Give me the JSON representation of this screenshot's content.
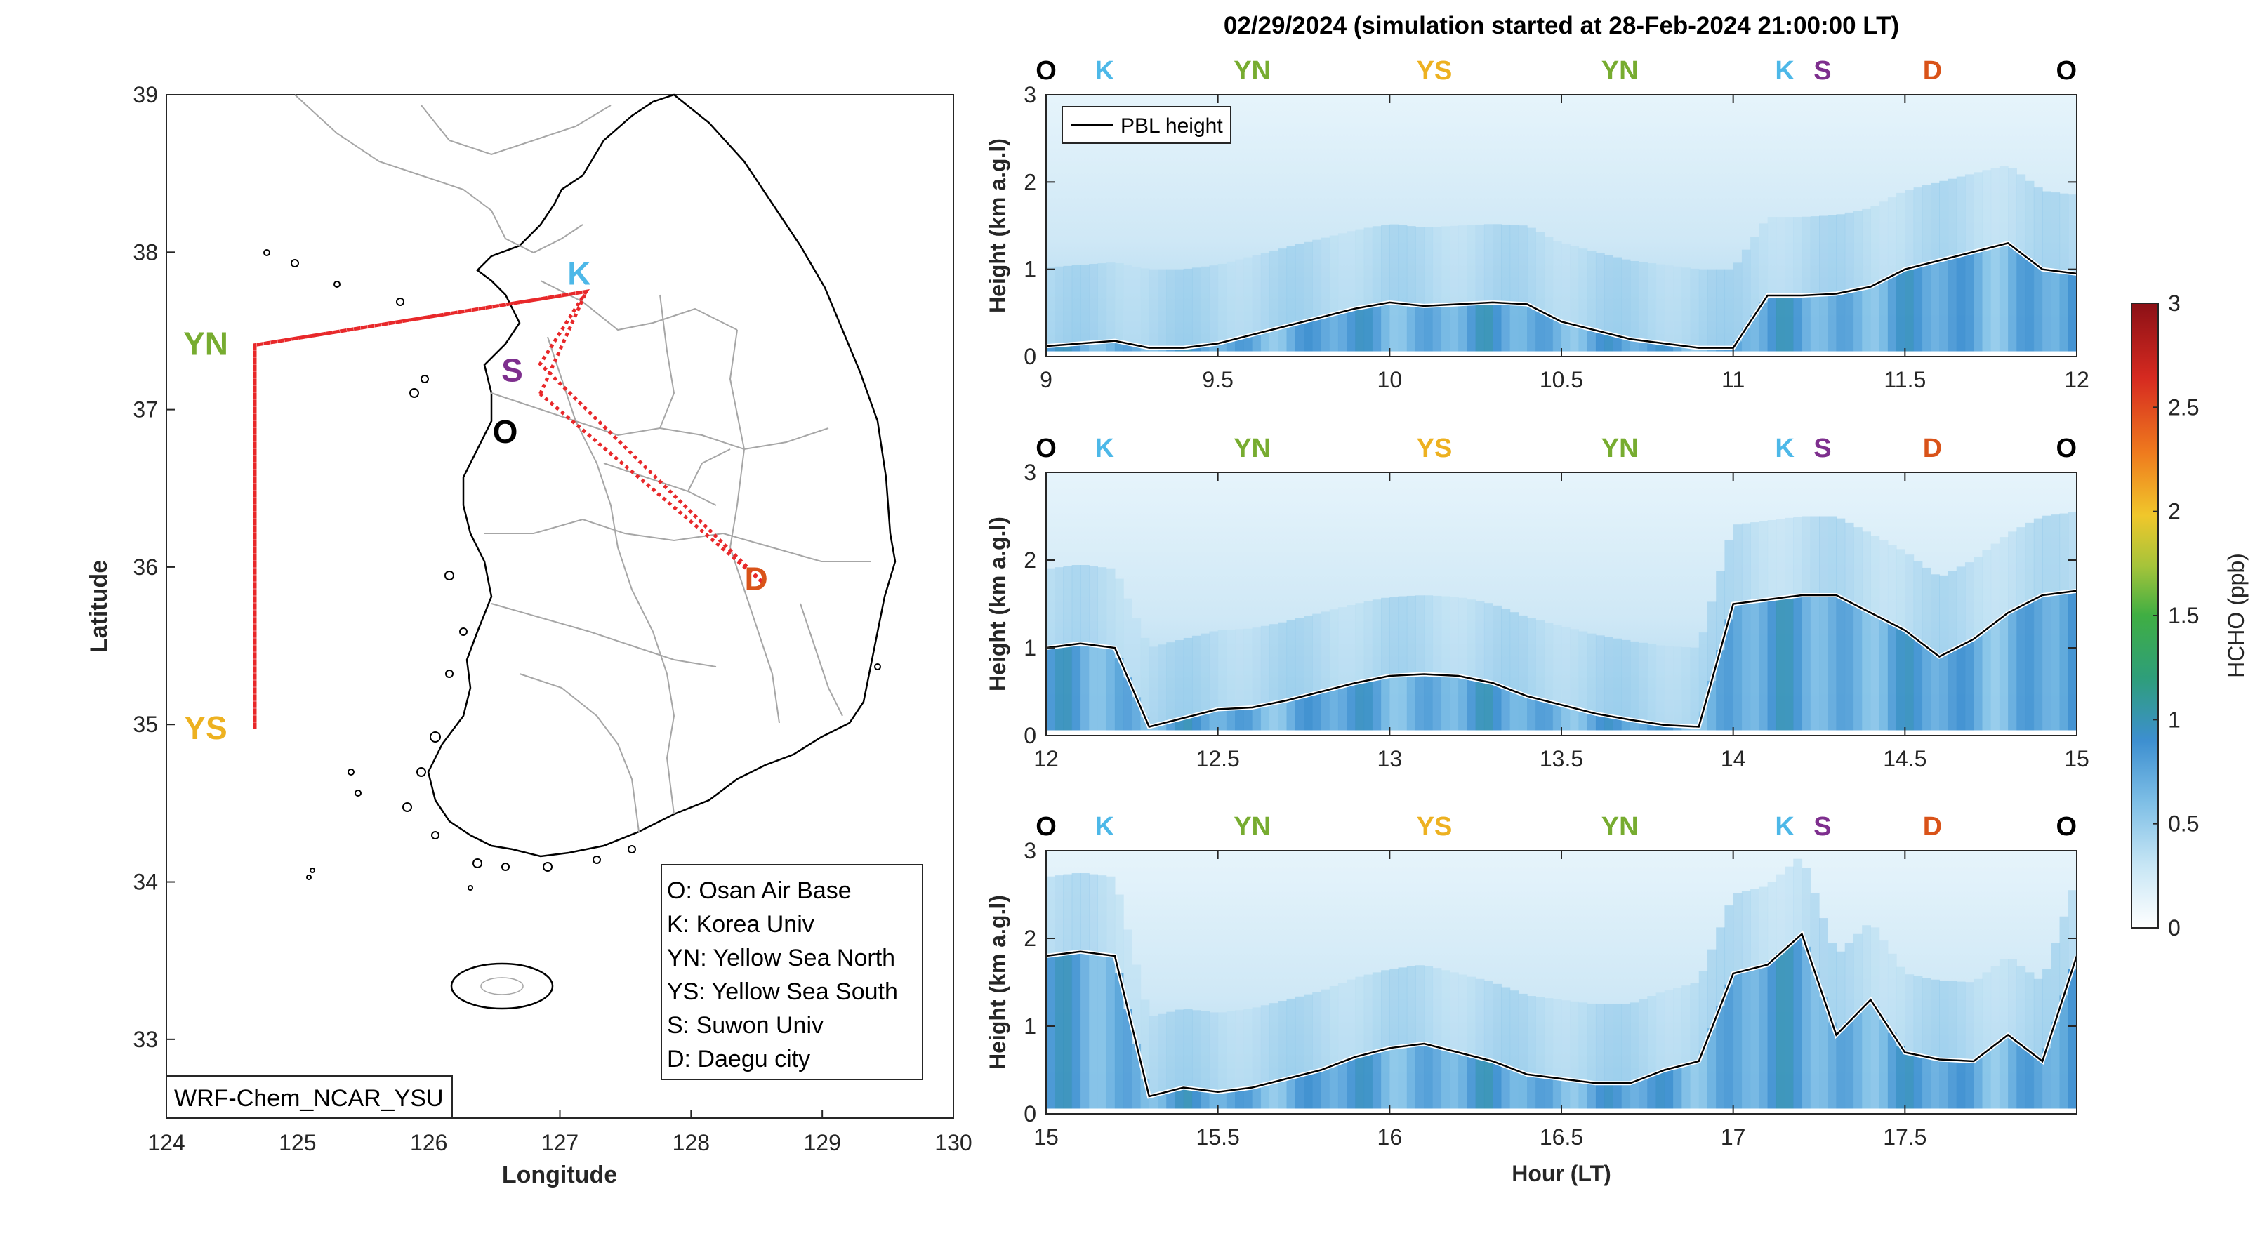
{
  "title": "02/29/2024 (simulation started at 28-Feb-2024 21:00:00 LT)",
  "colors": {
    "O": "#000000",
    "K": "#4db8e8",
    "YN": "#77ac30",
    "YS": "#edb120",
    "S": "#7e2f8e",
    "D": "#d95319",
    "flight_track": "#e8282a"
  },
  "map": {
    "xlabel": "Longitude",
    "ylabel": "Latitude",
    "xlim": [
      124,
      130
    ],
    "ylim": [
      32.5,
      39
    ],
    "xticks": [
      "124",
      "125",
      "126",
      "127",
      "128",
      "129",
      "130"
    ],
    "yticks": [
      "33",
      "34",
      "35",
      "36",
      "37",
      "38",
      "39"
    ],
    "model_label": "WRF-Chem_NCAR_YSU",
    "sites": [
      {
        "code": "K",
        "lon": 127.2,
        "lat": 37.75
      },
      {
        "code": "S",
        "lon": 126.85,
        "lat": 37.29
      },
      {
        "code": "O",
        "lon": 126.85,
        "lat": 37.1
      },
      {
        "code": "D",
        "lon": 128.55,
        "lat": 35.9
      },
      {
        "code": "YN",
        "lon": 124.3,
        "lat": 37.41
      },
      {
        "code": "YS",
        "lon": 124.3,
        "lat": 34.97
      }
    ],
    "legend": [
      "O: Osan Air Base",
      "K: Korea Univ",
      "YN: Yellow Sea North",
      "YS: Yellow Sea South",
      "S: Suwon Univ",
      "D: Daegu city"
    ]
  },
  "chart_data": [
    {
      "type": "heatmap",
      "xlabel": "",
      "ylabel": "Height (km a.g.l)",
      "xlim": [
        9,
        12
      ],
      "ylim": [
        0,
        3
      ],
      "xticks": [
        "9",
        "9.5",
        "10",
        "10.5",
        "11",
        "11.5",
        "12"
      ],
      "yticks": [
        "0",
        "1",
        "2",
        "3"
      ],
      "legend": [
        "PBL height"
      ],
      "site_markers": [
        {
          "code": "O",
          "x": 9.0
        },
        {
          "code": "K",
          "x": 9.17
        },
        {
          "code": "YN",
          "x": 9.6
        },
        {
          "code": "YS",
          "x": 10.13
        },
        {
          "code": "YN",
          "x": 10.67
        },
        {
          "code": "K",
          "x": 11.15
        },
        {
          "code": "S",
          "x": 11.26
        },
        {
          "code": "D",
          "x": 11.58
        },
        {
          "code": "O",
          "x": 11.97
        }
      ],
      "series": [
        {
          "name": "PBL height",
          "x": [
            9.0,
            9.1,
            9.2,
            9.3,
            9.4,
            9.5,
            9.6,
            9.7,
            9.8,
            9.9,
            10.0,
            10.1,
            10.2,
            10.3,
            10.4,
            10.5,
            10.6,
            10.7,
            10.8,
            10.9,
            11.0,
            11.1,
            11.2,
            11.3,
            11.4,
            11.5,
            11.6,
            11.7,
            11.8,
            11.9,
            12.0
          ],
          "values": [
            0.12,
            0.15,
            0.18,
            0.1,
            0.1,
            0.15,
            0.25,
            0.35,
            0.45,
            0.55,
            0.62,
            0.58,
            0.6,
            0.62,
            0.6,
            0.4,
            0.3,
            0.2,
            0.15,
            0.1,
            0.1,
            0.7,
            0.7,
            0.72,
            0.8,
            1.0,
            1.1,
            1.2,
            1.3,
            1.0,
            0.95
          ]
        }
      ]
    },
    {
      "type": "heatmap",
      "xlabel": "",
      "ylabel": "Height (km a.g.l)",
      "xlim": [
        12,
        15
      ],
      "ylim": [
        0,
        3
      ],
      "xticks": [
        "12",
        "12.5",
        "13",
        "13.5",
        "14",
        "14.5",
        "15"
      ],
      "yticks": [
        "0",
        "1",
        "2",
        "3"
      ],
      "site_markers": [
        {
          "code": "O",
          "x": 12.0
        },
        {
          "code": "K",
          "x": 12.17
        },
        {
          "code": "YN",
          "x": 12.6
        },
        {
          "code": "YS",
          "x": 13.13
        },
        {
          "code": "YN",
          "x": 13.67
        },
        {
          "code": "K",
          "x": 14.15
        },
        {
          "code": "S",
          "x": 14.26
        },
        {
          "code": "D",
          "x": 14.58
        },
        {
          "code": "O",
          "x": 14.97
        }
      ],
      "series": [
        {
          "name": "PBL height",
          "x": [
            12.0,
            12.1,
            12.2,
            12.3,
            12.4,
            12.5,
            12.6,
            12.7,
            12.8,
            12.9,
            13.0,
            13.1,
            13.2,
            13.3,
            13.4,
            13.5,
            13.6,
            13.7,
            13.8,
            13.9,
            14.0,
            14.1,
            14.2,
            14.3,
            14.4,
            14.5,
            14.6,
            14.7,
            14.8,
            14.9,
            15.0
          ],
          "values": [
            1.0,
            1.05,
            1.0,
            0.1,
            0.2,
            0.3,
            0.32,
            0.4,
            0.5,
            0.6,
            0.68,
            0.7,
            0.68,
            0.6,
            0.45,
            0.35,
            0.25,
            0.18,
            0.12,
            0.1,
            1.5,
            1.55,
            1.6,
            1.6,
            1.4,
            1.2,
            0.9,
            1.1,
            1.4,
            1.6,
            1.65
          ]
        }
      ]
    },
    {
      "type": "heatmap",
      "xlabel": "Hour (LT)",
      "ylabel": "Height (km a.g.l)",
      "xlim": [
        15,
        18
      ],
      "ylim": [
        0,
        3
      ],
      "xticks": [
        "15",
        "15.5",
        "16",
        "16.5",
        "17",
        "17.5"
      ],
      "yticks": [
        "0",
        "1",
        "2",
        "3"
      ],
      "site_markers": [
        {
          "code": "O",
          "x": 15.0
        },
        {
          "code": "K",
          "x": 15.17
        },
        {
          "code": "YN",
          "x": 15.6
        },
        {
          "code": "YS",
          "x": 16.13
        },
        {
          "code": "YN",
          "x": 16.67
        },
        {
          "code": "K",
          "x": 17.15
        },
        {
          "code": "S",
          "x": 17.26
        },
        {
          "code": "D",
          "x": 17.58
        },
        {
          "code": "O",
          "x": 17.97
        }
      ],
      "series": [
        {
          "name": "PBL height",
          "x": [
            15.0,
            15.1,
            15.2,
            15.3,
            15.4,
            15.5,
            15.6,
            15.7,
            15.8,
            15.9,
            16.0,
            16.1,
            16.2,
            16.3,
            16.4,
            16.5,
            16.6,
            16.7,
            16.8,
            16.9,
            17.0,
            17.1,
            17.2,
            17.3,
            17.4,
            17.5,
            17.6,
            17.7,
            17.8,
            17.9,
            18.0
          ],
          "values": [
            1.8,
            1.85,
            1.8,
            0.2,
            0.3,
            0.25,
            0.3,
            0.4,
            0.5,
            0.65,
            0.75,
            0.8,
            0.7,
            0.6,
            0.45,
            0.4,
            0.35,
            0.35,
            0.5,
            0.6,
            1.6,
            1.7,
            2.05,
            0.9,
            1.3,
            0.7,
            0.62,
            0.6,
            0.9,
            0.6,
            1.8
          ]
        }
      ]
    }
  ],
  "colorbar": {
    "label": "HCHO (ppb)",
    "ticks": [
      "0",
      "0.5",
      "1",
      "1.5",
      "2",
      "2.5",
      "3"
    ]
  }
}
